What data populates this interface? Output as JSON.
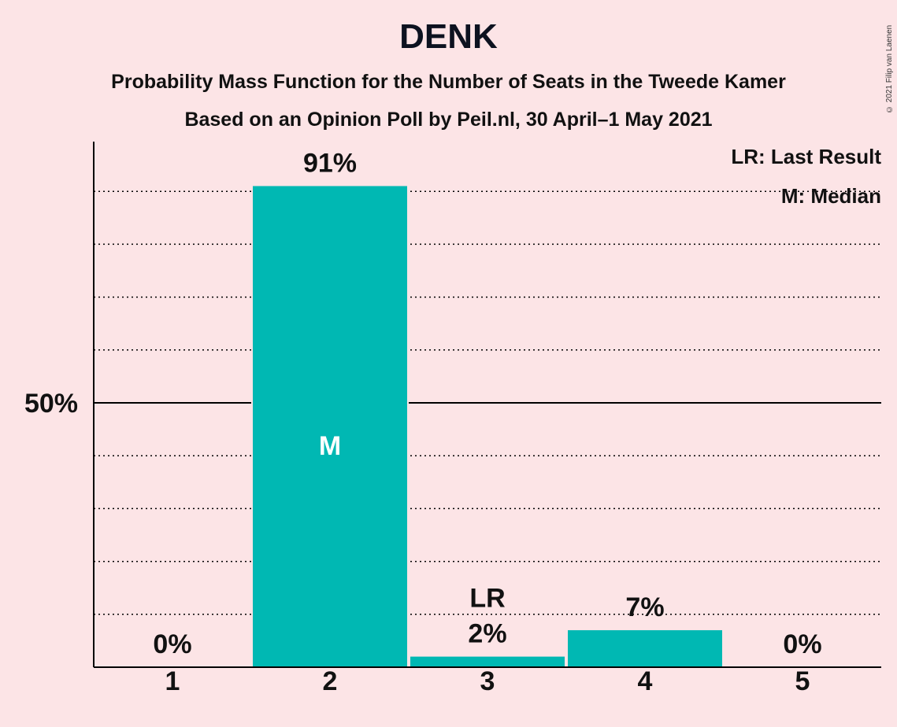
{
  "title": "DENK",
  "subtitle1": "Probability Mass Function for the Number of Seats in the Tweede Kamer",
  "subtitle2": "Based on an Opinion Poll by Peil.nl, 30 April–1 May 2021",
  "copyright": "© 2021 Filip van Laenen",
  "legend": {
    "last_result": "LR: Last Result",
    "median": "M: Median"
  },
  "colors": {
    "background": "#fce4e6",
    "bar": "#00b8b3",
    "text": "#111111"
  },
  "chart_data": {
    "type": "bar",
    "categories": [
      "1",
      "2",
      "3",
      "4",
      "5"
    ],
    "values": [
      0,
      91,
      2,
      7,
      0
    ],
    "value_labels": [
      "0%",
      "91%",
      "2%",
      "7%",
      "0%"
    ],
    "ylim": [
      0,
      100
    ],
    "yticks": [
      {
        "value": 50,
        "label": "50%"
      }
    ],
    "gridlines": [
      10,
      20,
      30,
      40,
      50,
      60,
      70,
      80,
      90
    ],
    "major_gridline": 50,
    "median_category": "2",
    "median_marker": "M",
    "last_result_category": "3",
    "last_result_marker": "LR",
    "legend_position": "top-right"
  }
}
